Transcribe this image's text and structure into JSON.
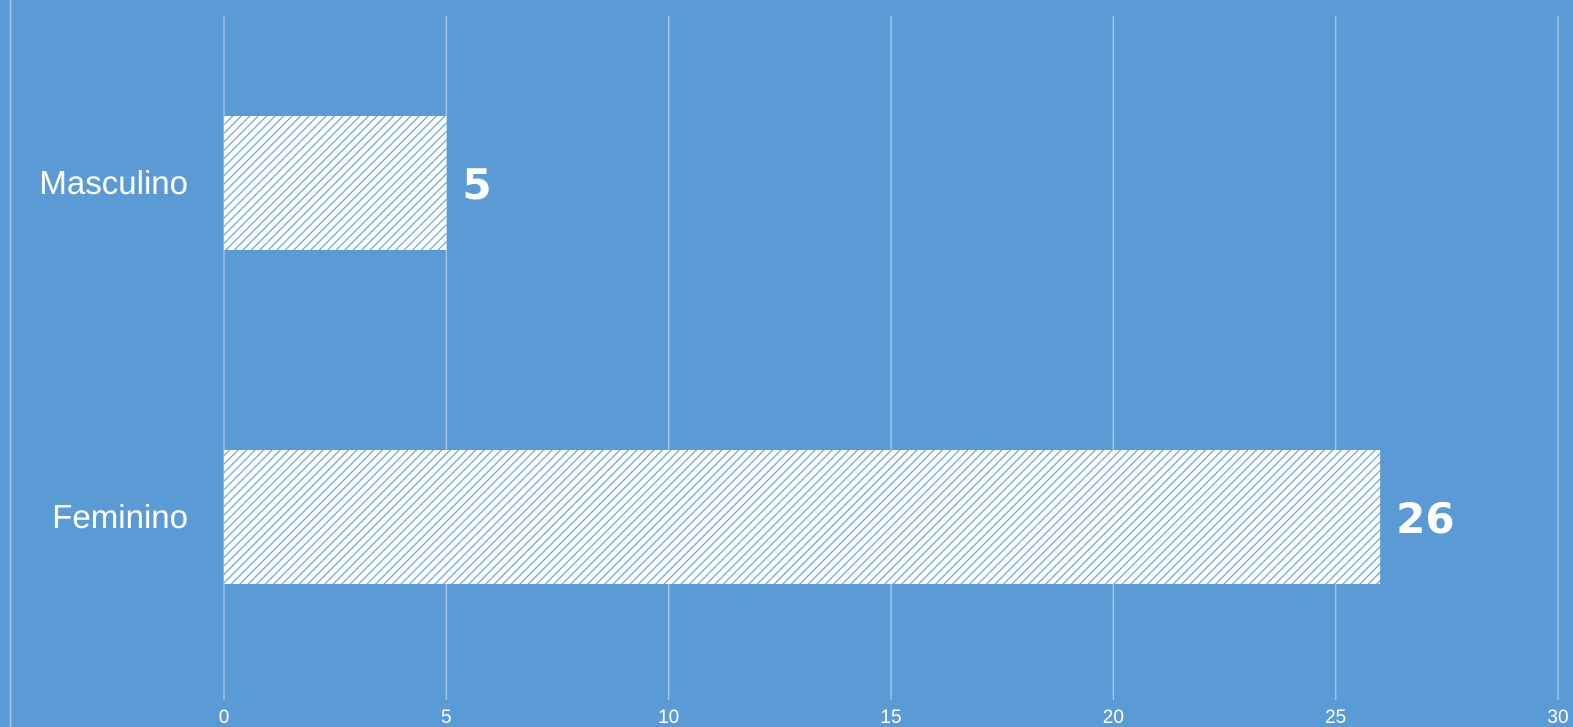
{
  "chart_data": {
    "type": "bar",
    "orientation": "horizontal",
    "categories": [
      "Masculino",
      "Feminino"
    ],
    "values": [
      5,
      26
    ],
    "xlim": [
      0,
      30
    ],
    "x_ticks": [
      "0",
      "5",
      "10",
      "15",
      "20",
      "25",
      "30"
    ],
    "data_labels": [
      "5",
      "26"
    ],
    "grid": true,
    "legend": "none",
    "colors": {
      "background": "#5b9bd5",
      "bar_fill": "#ffffff",
      "bar_pattern_stripe": "#5b9bd5",
      "gridline": "#a9c8e8",
      "text": "#ffffff"
    }
  }
}
